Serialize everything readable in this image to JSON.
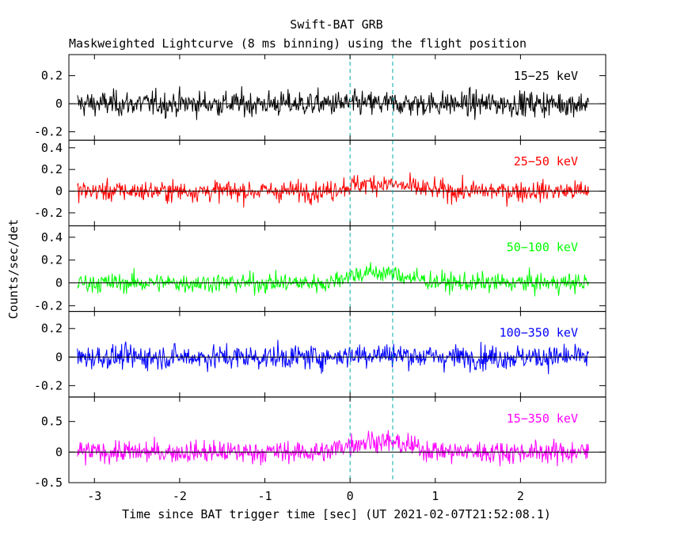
{
  "chart_data": {
    "type": "line",
    "title": "Swift-BAT GRB",
    "subtitle": "Maskweighted Lightcurve (8 ms binning) using the flight position",
    "xlabel": "Time since BAT trigger time [sec] (UT 2021-02-07T21:52:08.1)",
    "ylabel": "Counts/sec/det",
    "xlim": [
      -3.3,
      3.0
    ],
    "x_ticks": [
      "-3",
      "-2",
      "-1",
      "0",
      "1",
      "2"
    ],
    "x_range_data": [
      -3.2,
      2.8
    ],
    "markers": [
      0.0,
      0.5
    ],
    "panels": [
      {
        "name": "15-25 keV",
        "label": "15−25 keV",
        "color": "#000000",
        "ylim": [
          -0.26,
          0.35
        ],
        "ticks": [
          "-0.2",
          "0",
          "0.2"
        ],
        "sigma": 0.085,
        "burst": 0.0
      },
      {
        "name": "25-50 keV",
        "label": "25−50 keV",
        "color": "#ff0000",
        "ylim": [
          -0.32,
          0.47
        ],
        "ticks": [
          "-0.2",
          "0",
          "0.2",
          "0.4"
        ],
        "sigma": 0.09,
        "burst": 0.07
      },
      {
        "name": "50-100 keV",
        "label": "50−100 keV",
        "color": "#00ff00",
        "ylim": [
          -0.25,
          0.5
        ],
        "ticks": [
          "-0.2",
          "0",
          "0.2",
          "0.4"
        ],
        "sigma": 0.08,
        "burst": 0.09
      },
      {
        "name": "100-350 keV",
        "label": "100−350 keV",
        "color": "#0000ff",
        "ylim": [
          -0.28,
          0.32
        ],
        "ticks": [
          "-0.2",
          "0",
          "0.2"
        ],
        "sigma": 0.08,
        "burst": 0.02
      },
      {
        "name": "15-350 keV",
        "label": "15−350 keV",
        "color": "#ff00ff",
        "ylim": [
          -0.5,
          0.9
        ],
        "ticks": [
          "-0.5",
          "0",
          "0.5"
        ],
        "sigma": 0.17,
        "burst": 0.18
      }
    ]
  }
}
